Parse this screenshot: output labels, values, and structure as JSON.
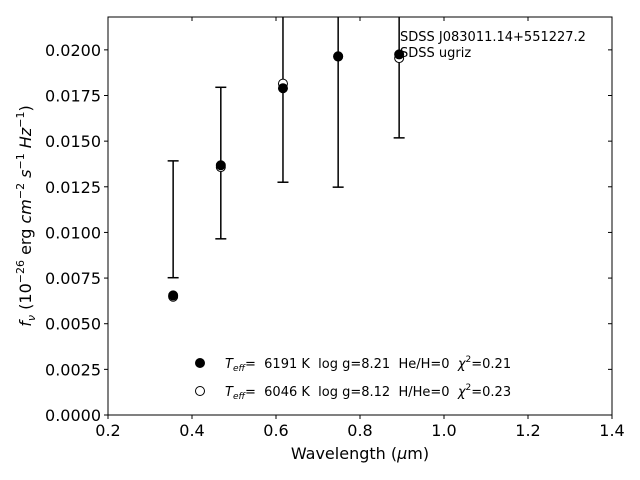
{
  "chart_data": {
    "type": "scatter",
    "x_min": 0.2,
    "x_max": 1.4,
    "y_min": 0.0,
    "y_max": 0.0218,
    "x_ticks": [
      0.2,
      0.4,
      0.6,
      0.8,
      1.0,
      1.2,
      1.4
    ],
    "x_tick_labels": [
      "0.2",
      "0.4",
      "0.6",
      "0.8",
      "1.0",
      "1.2",
      "1.4"
    ],
    "y_ticks": [
      0.0,
      0.0025,
      0.005,
      0.0075,
      0.01,
      0.0125,
      0.015,
      0.0175,
      0.02
    ],
    "y_tick_labels": [
      "0.0000",
      "0.0025",
      "0.0050",
      "0.0075",
      "0.0100",
      "0.0125",
      "0.0150",
      "0.0175",
      "0.0200"
    ],
    "xlabel_pre": "Wavelength (",
    "xlabel_mu": "μ",
    "xlabel_post": "m)",
    "ylabel_f": "f",
    "ylabel_nu": "ν",
    "ylabel_open": " (10",
    "ylabel_exp1": "−26",
    "ylabel_erg": " erg ",
    "ylabel_cm": "cm",
    "ylabel_exp2": "−2",
    "ylabel_s": " s",
    "ylabel_exp3": "−1",
    "ylabel_hz": " Hz",
    "ylabel_exp4": "−1",
    "ylabel_close": ")",
    "annotation_line1": "SDSS J083011.14+551227.2",
    "annotation_line2": "SDSS ugriz",
    "observed": {
      "x": [
        0.3551,
        0.4686,
        0.6166,
        0.748,
        0.8932
      ],
      "y": [
        0.0066,
        0.0137,
        0.018,
        0.0197,
        0.0198
      ],
      "err_low": [
        0.00752,
        0.00965,
        0.01275,
        0.01248,
        0.01518
      ],
      "err_high": [
        0.01392,
        0.01795,
        0.0222,
        0.0222,
        0.0222
      ],
      "err_high_clipped": [
        false,
        false,
        true,
        true,
        true
      ]
    },
    "series": [
      {
        "name": "Teff= 6191 K log g=8.21 He/H=0 χ²=0.21",
        "marker": "filled",
        "x": [
          0.3551,
          0.4686,
          0.6166,
          0.748,
          0.8932
        ],
        "y": [
          0.00655,
          0.01368,
          0.0179,
          0.01965,
          0.01975
        ]
      },
      {
        "name": "Teff= 6046 K log g=8.12 H/He=0 χ²=0.23",
        "marker": "open",
        "x": [
          0.3551,
          0.4686,
          0.6166,
          0.748,
          0.8932
        ],
        "y": [
          0.00648,
          0.01358,
          0.01815,
          0.01963,
          0.01955
        ]
      }
    ],
    "legend": [
      {
        "marker": "filled",
        "t_label": "T",
        "t_sub": "eff",
        "text": "=  6191 K  log g=8.21  He/H=0  ",
        "chi": "χ",
        "chi_sup": "2",
        "chi_val": "=0.21"
      },
      {
        "marker": "open",
        "t_label": "T",
        "t_sub": "eff",
        "text": "=  6046 K  log g=8.12  H/He=0  ",
        "chi": "χ",
        "chi_sup": "2",
        "chi_val": "=0.23"
      }
    ],
    "legend_position": "lower-center",
    "grid": false
  }
}
